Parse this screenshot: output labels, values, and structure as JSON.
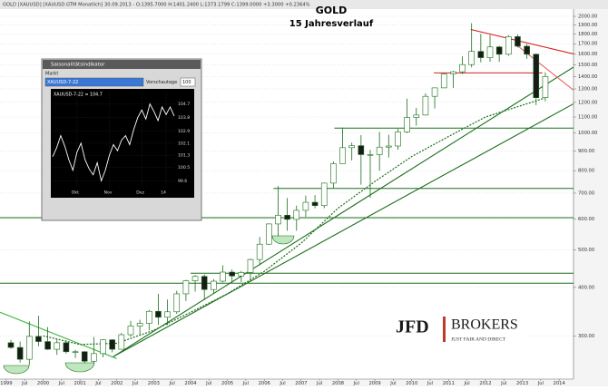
{
  "header": {
    "text": "GOLD [XAUUSD] [XAUUSD.GTM Monatlich]  30.09.2013 - O:1395.7000 H:1401.2400 L:1373.1799 C:1399.0000 +3.3000 +0.2364%"
  },
  "logo": {
    "brand": "JFD",
    "name": "BROKERS",
    "tagline": "JUST FAIR AND DIRECT"
  },
  "chart_data": [
    {
      "type": "candlestick",
      "title": "GOLD",
      "subtitle": "15 Jahresverlauf",
      "log_scale": true,
      "grid": true,
      "up_color": "#ffffff",
      "down_color": "#1a1a1a",
      "wick_color": "#1a6e1a",
      "x": [
        1999.125,
        1999.375,
        1999.625,
        1999.875,
        2000.125,
        2000.375,
        2000.625,
        2000.875,
        2001.125,
        2001.375,
        2001.625,
        2001.875,
        2002.125,
        2002.375,
        2002.625,
        2002.875,
        2003.125,
        2003.375,
        2003.625,
        2003.875,
        2004.125,
        2004.375,
        2004.625,
        2004.875,
        2005.125,
        2005.375,
        2005.625,
        2005.875,
        2006.125,
        2006.375,
        2006.625,
        2006.875,
        2007.125,
        2007.375,
        2007.625,
        2007.875,
        2008.125,
        2008.375,
        2008.625,
        2008.875,
        2009.125,
        2009.375,
        2009.625,
        2009.875,
        2010.125,
        2010.375,
        2010.625,
        2010.875,
        2011.125,
        2011.375,
        2011.625,
        2011.875,
        2012.125,
        2012.375,
        2012.625,
        2012.875,
        2013.125,
        2013.375,
        2013.625
      ],
      "open": [
        288,
        280,
        261,
        299,
        290,
        277,
        288,
        273,
        273,
        258,
        270,
        293,
        277,
        302,
        318,
        323,
        347,
        335,
        346,
        385,
        416,
        427,
        395,
        415,
        438,
        428,
        437,
        472,
        517,
        583,
        614,
        599,
        632,
        663,
        650,
        743,
        834,
        917,
        928,
        880,
        880,
        920,
        926,
        1007,
        1097,
        1113,
        1244,
        1308,
        1421,
        1439,
        1502,
        1624,
        1565,
        1668,
        1597,
        1773,
        1675,
        1597,
        1234
      ],
      "high": [
        293,
        290,
        327,
        338,
        316,
        294,
        292,
        276,
        274,
        298,
        294,
        294,
        305,
        328,
        330,
        350,
        385,
        372,
        392,
        418,
        430,
        432,
        420,
        456,
        445,
        441,
        475,
        540,
        585,
        730,
        680,
        650,
        690,
        692,
        745,
        845,
        1033,
        945,
        988,
        905,
        1007,
        990,
        1025,
        1227,
        1162,
        1266,
        1308,
        1431,
        1448,
        1577,
        1921,
        1803,
        1791,
        1678,
        1790,
        1796,
        1697,
        1605,
        1434
      ],
      "low": [
        278,
        256,
        252,
        282,
        276,
        268,
        270,
        263,
        255,
        255,
        264,
        272,
        277,
        298,
        302,
        310,
        320,
        320,
        342,
        369,
        390,
        371,
        385,
        412,
        410,
        413,
        415,
        456,
        515,
        542,
        560,
        560,
        608,
        640,
        640,
        722,
        835,
        850,
        736,
        681,
        800,
        865,
        906,
        1000,
        1045,
        1110,
        1157,
        1313,
        1308,
        1419,
        1478,
        1523,
        1527,
        1527,
        1582,
        1662,
        1554,
        1180,
        1208
      ],
      "close": [
        280,
        261,
        299,
        290,
        277,
        288,
        273,
        273,
        258,
        270,
        293,
        277,
        302,
        318,
        323,
        347,
        335,
        346,
        385,
        416,
        427,
        395,
        415,
        438,
        428,
        437,
        472,
        517,
        583,
        614,
        599,
        632,
        663,
        650,
        743,
        834,
        917,
        928,
        880,
        880,
        920,
        926,
        1007,
        1097,
        1113,
        1244,
        1308,
        1421,
        1439,
        1502,
        1624,
        1565,
        1668,
        1597,
        1773,
        1675,
        1597,
        1234,
        1399
      ],
      "xlim": [
        1998.83,
        2014.39
      ],
      "xticks": [
        {
          "value": 1999,
          "label": "1999"
        },
        {
          "value": 1999.5,
          "label": "Jul"
        },
        {
          "value": 2000,
          "label": "2000"
        },
        {
          "value": 2000.5,
          "label": "Jul"
        },
        {
          "value": 2001,
          "label": "2001"
        },
        {
          "value": 2001.5,
          "label": "Jul"
        },
        {
          "value": 2002,
          "label": "2002"
        },
        {
          "value": 2002.5,
          "label": "Jul"
        },
        {
          "value": 2003,
          "label": "2003"
        },
        {
          "value": 2003.5,
          "label": "Jul"
        },
        {
          "value": 2004,
          "label": "2004"
        },
        {
          "value": 2004.5,
          "label": "Jul"
        },
        {
          "value": 2005,
          "label": "2005"
        },
        {
          "value": 2005.5,
          "label": "Jul"
        },
        {
          "value": 2006,
          "label": "2006"
        },
        {
          "value": 2006.5,
          "label": "Jul"
        },
        {
          "value": 2007,
          "label": "2007"
        },
        {
          "value": 2007.5,
          "label": "Jul"
        },
        {
          "value": 2008,
          "label": "2008"
        },
        {
          "value": 2008.5,
          "label": "Jul"
        },
        {
          "value": 2009,
          "label": "2009"
        },
        {
          "value": 2009.5,
          "label": "Jul"
        },
        {
          "value": 2010,
          "label": "2010"
        },
        {
          "value": 2010.5,
          "label": "Jul"
        },
        {
          "value": 2011,
          "label": "2011"
        },
        {
          "value": 2011.5,
          "label": "Jul"
        },
        {
          "value": 2012,
          "label": "2012"
        },
        {
          "value": 2012.5,
          "label": "Jul"
        },
        {
          "value": 2013,
          "label": "2013"
        },
        {
          "value": 2013.5,
          "label": "Jul"
        },
        {
          "value": 2014,
          "label": "2014"
        }
      ],
      "ylim": [
        232,
        2111
      ],
      "yticks": [
        {
          "value": 2000,
          "label": "2000.00"
        },
        {
          "value": 1900,
          "label": "1900.00"
        },
        {
          "value": 1800,
          "label": "1800.00"
        },
        {
          "value": 1700,
          "label": "1700.00"
        },
        {
          "value": 1600,
          "label": "1600.00"
        },
        {
          "value": 1500,
          "label": "1500.00"
        },
        {
          "value": 1400,
          "label": "1400.00"
        },
        {
          "value": 1300,
          "label": "1300.00"
        },
        {
          "value": 1200,
          "label": "1200.00"
        },
        {
          "value": 1100,
          "label": "1100.00"
        },
        {
          "value": 1000,
          "label": "1000.00"
        },
        {
          "value": 900,
          "label": "900.00"
        },
        {
          "value": 800,
          "label": "800.00"
        },
        {
          "value": 700,
          "label": "700.00"
        },
        {
          "value": 600,
          "label": "600.00"
        },
        {
          "value": 500,
          "label": "500.00"
        },
        {
          "value": 400,
          "label": "400.00"
        },
        {
          "value": 300,
          "label": "300.00"
        }
      ],
      "levels": [
        {
          "value": 1030,
          "from": 2007.9,
          "color": "#1a6e1a"
        },
        {
          "value": 720,
          "from": 2006.25,
          "color": "#1a6e1a"
        },
        {
          "value": 605,
          "from": 1998.83,
          "color": "#1a6e1a"
        },
        {
          "value": 435,
          "from": 2004,
          "color": "#1a6e1a"
        },
        {
          "value": 410,
          "from": 1998.83,
          "color": "#1a6e1a"
        },
        {
          "value": 1430,
          "from": 2010.6,
          "to": 2013.55,
          "color": "#d62020"
        }
      ],
      "trendlines": [
        {
          "points": [
            [
              2001.9,
              265
            ],
            [
              2014.39,
              1480
            ]
          ],
          "color": "#1a6e1a"
        },
        {
          "points": [
            [
              2001.9,
              265
            ],
            [
              2014.39,
              1190
            ]
          ],
          "color": "#1a6e1a"
        },
        {
          "points": [
            [
              1998.83,
              345
            ],
            [
              2002.0,
              262
            ]
          ],
          "color": "#3cb83c"
        },
        {
          "points": [
            [
              2011.6,
              1850
            ],
            [
              2014.39,
              1600
            ]
          ],
          "color": "#d62020"
        },
        {
          "points": [
            [
              2012.8,
              1700
            ],
            [
              2014.39,
              1290
            ]
          ],
          "color": "#e86060"
        }
      ],
      "moving_average": {
        "color": "#1a6e1a",
        "x": [
          2000,
          2001,
          2002,
          2003,
          2004,
          2005,
          2006,
          2007,
          2008,
          2009,
          2010,
          2011,
          2012,
          2013,
          2013.6
        ],
        "values": [
          300,
          285,
          287,
          310,
          345,
          385,
          440,
          520,
          640,
          750,
          870,
          980,
          1100,
          1180,
          1230
        ]
      }
    },
    {
      "type": "line",
      "title": "Saisonalitätsindikator",
      "market_label": "Markt",
      "market": "XAUUSD-7-22",
      "days_label": "Vorschautage",
      "days": 100,
      "legend": "XAUUSD-7-22 = 104.7",
      "color": "#ffffff",
      "values": [
        101.2,
        101.8,
        102.6,
        101.9,
        101.0,
        100.3,
        101.5,
        102.1,
        101.0,
        100.4,
        100.0,
        100.8,
        99.6,
        100.3,
        101.3,
        102.0,
        101.6,
        102.3,
        102.6,
        102.0,
        103.0,
        103.8,
        104.3,
        103.7,
        104.7,
        104.2,
        103.6,
        104.5,
        104.0,
        104.5,
        103.9
      ],
      "xlim": [
        0,
        30
      ],
      "xticks": [
        {
          "value": 6,
          "label": "Okt"
        },
        {
          "value": 14,
          "label": "Nov"
        },
        {
          "value": 22,
          "label": "Dez"
        },
        {
          "value": 28,
          "label": "14"
        }
      ],
      "ylim": [
        99.2,
        105.1
      ],
      "yticks": [
        104.7,
        103.8,
        102.9,
        102.1,
        101.3,
        100.5,
        99.6
      ]
    }
  ]
}
